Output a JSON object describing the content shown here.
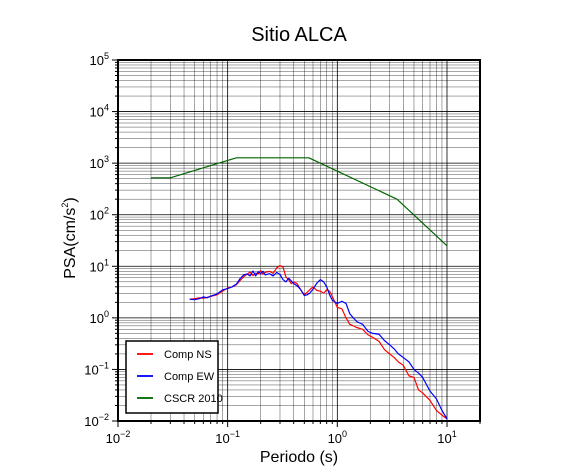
{
  "chart_data": {
    "type": "line",
    "title": "Sitio ALCA",
    "xlabel": "Periodo (s)",
    "ylabel": {
      "base": "PSA(cm/s",
      "sup": "2",
      "tail": ")"
    },
    "xscale": "log",
    "yscale": "log",
    "xlim": [
      0.01,
      20
    ],
    "ylim": [
      0.01,
      100000
    ],
    "grid": true,
    "legend_position": "bottom-left",
    "x_ticks": [
      {
        "value": 0.01,
        "base": "10",
        "exp": "−2"
      },
      {
        "value": 0.1,
        "base": "10",
        "exp": "−1"
      },
      {
        "value": 1,
        "base": "10",
        "exp": "0"
      },
      {
        "value": 10,
        "base": "10",
        "exp": "1"
      }
    ],
    "y_ticks": [
      {
        "value": 0.01,
        "base": "10",
        "exp": "−2"
      },
      {
        "value": 0.1,
        "base": "10",
        "exp": "−1"
      },
      {
        "value": 1,
        "base": "10",
        "exp": "0"
      },
      {
        "value": 10,
        "base": "10",
        "exp": "1"
      },
      {
        "value": 100,
        "base": "10",
        "exp": "2"
      },
      {
        "value": 1000,
        "base": "10",
        "exp": "3"
      },
      {
        "value": 10000,
        "base": "10",
        "exp": "4"
      },
      {
        "value": 100000,
        "base": "10",
        "exp": "5"
      }
    ],
    "series": [
      {
        "name": "Comp NS",
        "color": "#ff0000",
        "points": [
          [
            0.045,
            2.3
          ],
          [
            0.05,
            2.35
          ],
          [
            0.055,
            2.45
          ],
          [
            0.06,
            2.4
          ],
          [
            0.065,
            2.5
          ],
          [
            0.07,
            2.6
          ],
          [
            0.08,
            2.8
          ],
          [
            0.09,
            3.3
          ],
          [
            0.1,
            3.8
          ],
          [
            0.11,
            4.0
          ],
          [
            0.12,
            4.4
          ],
          [
            0.13,
            5.3
          ],
          [
            0.14,
            6.3
          ],
          [
            0.15,
            7.0
          ],
          [
            0.16,
            7.7
          ],
          [
            0.17,
            6.6
          ],
          [
            0.18,
            7.4
          ],
          [
            0.19,
            7.1
          ],
          [
            0.2,
            8.3
          ],
          [
            0.21,
            7.0
          ],
          [
            0.22,
            7.6
          ],
          [
            0.24,
            8.0
          ],
          [
            0.26,
            7.3
          ],
          [
            0.28,
            9.3
          ],
          [
            0.3,
            10.3
          ],
          [
            0.32,
            9.6
          ],
          [
            0.34,
            6.2
          ],
          [
            0.36,
            5.5
          ],
          [
            0.38,
            4.6
          ],
          [
            0.4,
            5.0
          ],
          [
            0.43,
            4.6
          ],
          [
            0.46,
            3.6
          ],
          [
            0.5,
            2.8
          ],
          [
            0.53,
            3.1
          ],
          [
            0.56,
            3.5
          ],
          [
            0.6,
            4.0
          ],
          [
            0.65,
            3.4
          ],
          [
            0.7,
            3.3
          ],
          [
            0.75,
            3.0
          ],
          [
            0.8,
            3.5
          ],
          [
            0.85,
            3.3
          ],
          [
            0.9,
            2.6
          ],
          [
            1.0,
            1.6
          ],
          [
            1.1,
            1.5
          ],
          [
            1.2,
            1.0
          ],
          [
            1.3,
            0.75
          ],
          [
            1.4,
            0.7
          ],
          [
            1.5,
            0.65
          ],
          [
            1.7,
            0.6
          ],
          [
            1.9,
            0.47
          ],
          [
            2.1,
            0.42
          ],
          [
            2.4,
            0.35
          ],
          [
            2.7,
            0.24
          ],
          [
            3.0,
            0.2
          ],
          [
            3.3,
            0.17
          ],
          [
            3.6,
            0.14
          ],
          [
            4.0,
            0.12
          ],
          [
            4.5,
            0.075
          ],
          [
            5.0,
            0.07
          ],
          [
            5.5,
            0.04
          ],
          [
            6.0,
            0.035
          ],
          [
            7.0,
            0.025
          ],
          [
            8.0,
            0.016
          ],
          [
            9.0,
            0.013
          ],
          [
            10.0,
            0.011
          ]
        ]
      },
      {
        "name": "Comp EW",
        "color": "#0000ff",
        "points": [
          [
            0.045,
            2.3
          ],
          [
            0.05,
            2.25
          ],
          [
            0.055,
            2.35
          ],
          [
            0.06,
            2.55
          ],
          [
            0.065,
            2.45
          ],
          [
            0.07,
            2.65
          ],
          [
            0.08,
            2.9
          ],
          [
            0.09,
            3.5
          ],
          [
            0.1,
            3.7
          ],
          [
            0.11,
            4.0
          ],
          [
            0.12,
            4.5
          ],
          [
            0.13,
            5.8
          ],
          [
            0.14,
            6.8
          ],
          [
            0.15,
            7.1
          ],
          [
            0.16,
            6.5
          ],
          [
            0.17,
            8.1
          ],
          [
            0.18,
            6.5
          ],
          [
            0.19,
            7.8
          ],
          [
            0.2,
            7.2
          ],
          [
            0.21,
            8.0
          ],
          [
            0.22,
            6.8
          ],
          [
            0.24,
            7.2
          ],
          [
            0.26,
            6.5
          ],
          [
            0.28,
            7.6
          ],
          [
            0.3,
            6.9
          ],
          [
            0.32,
            5.5
          ],
          [
            0.34,
            5.0
          ],
          [
            0.36,
            5.9
          ],
          [
            0.38,
            5.2
          ],
          [
            0.4,
            4.6
          ],
          [
            0.43,
            4.2
          ],
          [
            0.46,
            3.6
          ],
          [
            0.5,
            2.7
          ],
          [
            0.53,
            2.8
          ],
          [
            0.56,
            3.0
          ],
          [
            0.6,
            3.6
          ],
          [
            0.65,
            4.7
          ],
          [
            0.7,
            5.5
          ],
          [
            0.75,
            5.0
          ],
          [
            0.8,
            4.0
          ],
          [
            0.85,
            2.8
          ],
          [
            0.9,
            2.2
          ],
          [
            1.0,
            1.9
          ],
          [
            1.1,
            2.1
          ],
          [
            1.2,
            1.9
          ],
          [
            1.3,
            1.2
          ],
          [
            1.4,
            1.0
          ],
          [
            1.5,
            0.85
          ],
          [
            1.7,
            0.75
          ],
          [
            1.9,
            0.55
          ],
          [
            2.1,
            0.5
          ],
          [
            2.4,
            0.48
          ],
          [
            2.7,
            0.36
          ],
          [
            3.0,
            0.3
          ],
          [
            3.3,
            0.25
          ],
          [
            3.6,
            0.2
          ],
          [
            4.0,
            0.17
          ],
          [
            4.5,
            0.14
          ],
          [
            5.0,
            0.1
          ],
          [
            5.5,
            0.085
          ],
          [
            6.0,
            0.07
          ],
          [
            7.0,
            0.038
          ],
          [
            8.0,
            0.027
          ],
          [
            9.0,
            0.016
          ],
          [
            10.0,
            0.011
          ]
        ]
      },
      {
        "name": "CSCR 2010",
        "color": "#006400",
        "points": [
          [
            0.02,
            520
          ],
          [
            0.03,
            520
          ],
          [
            0.12,
            1270
          ],
          [
            0.55,
            1270
          ],
          [
            3.5,
            200
          ],
          [
            10.0,
            25
          ]
        ]
      }
    ]
  }
}
